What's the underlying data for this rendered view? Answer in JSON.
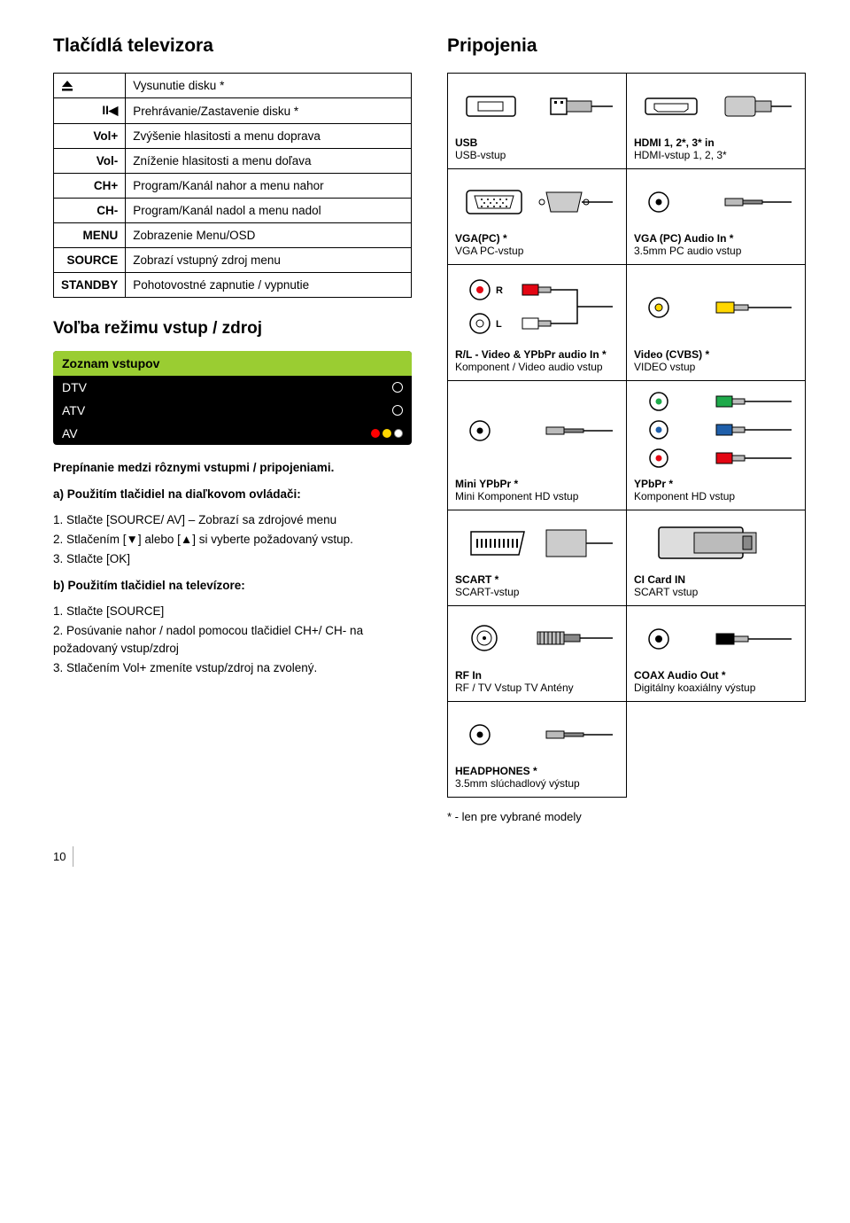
{
  "left": {
    "title1": "Tlačídlá televizora",
    "buttons": [
      {
        "key": "⏏",
        "desc": "Vysunutie disku *",
        "is_icon": true
      },
      {
        "key": "II◀",
        "desc": "Prehrávanie/Zastavenie disku *",
        "is_icon": true
      },
      {
        "key": "Vol+",
        "desc": "Zvýšenie hlasitosti a menu doprava"
      },
      {
        "key": "Vol-",
        "desc": "Zníženie hlasitosti a menu doľava"
      },
      {
        "key": "CH+",
        "desc": "Program/Kanál nahor a menu nahor"
      },
      {
        "key": "CH-",
        "desc": "Program/Kanál nadol a menu nadol"
      },
      {
        "key": "MENU",
        "desc": "Zobrazenie Menu/OSD"
      },
      {
        "key": "SOURCE",
        "desc": "Zobrazí vstupný zdroj menu"
      },
      {
        "key": "STANDBY",
        "desc": "Pohotovostné zapnutie / vypnutie"
      }
    ],
    "title2": "Voľba režimu vstup / zdroj",
    "osd": {
      "header": "Zoznam vstupov",
      "rows": [
        "DTV",
        "ATV",
        "AV"
      ],
      "av_colors": [
        "#ff0000",
        "#ffd700",
        "#ffffff"
      ]
    },
    "switching_line": "Prepínanie medzi rôznymi vstupmi / pripojeniami.",
    "section_a_title": "a) Použitím tlačidiel na diaľkovom ovládači:",
    "section_a_items": [
      "1. Stlačte [SOURCE/ AV] – Zobrazí sa zdrojové menu",
      "2. Stlačením [▼] alebo [▲] si vyberte požadovaný vstup.",
      "3. Stlačte [OK]"
    ],
    "section_b_title": "b) Použitím tlačidiel na televízore:",
    "section_b_items": [
      "1. Stlačte [SOURCE]",
      "2. Posúvanie nahor / nadol pomocou tlačidiel CH+/ CH- na požadovaný vstup/zdroj",
      "3. Stlačením Vol+ zmeníte vstup/zdroj na zvolený."
    ]
  },
  "right": {
    "title": "Pripojenia",
    "cells": [
      {
        "label": "USB",
        "sub": "USB-vstup",
        "icon": "usb"
      },
      {
        "label": "HDMI 1, 2*, 3* in",
        "sub": "HDMI-vstup 1, 2, 3*",
        "icon": "hdmi"
      },
      {
        "label": "VGA(PC) *",
        "sub": "VGA PC-vstup",
        "icon": "vga"
      },
      {
        "label": "VGA (PC) Audio In *",
        "sub": "3.5mm PC audio vstup",
        "icon": "jack35",
        "jack_color": "#000"
      },
      {
        "label": "R/L - Video & YPbPr audio In *",
        "sub": "Komponent / Video audio vstup",
        "icon": "rca_rl"
      },
      {
        "label": "Video (CVBS) *",
        "sub": "VIDEO vstup",
        "icon": "rca_single",
        "rca_color": "#ffd700"
      },
      {
        "label": "Mini YPbPr *",
        "sub": "Mini Komponent HD vstup",
        "icon": "jack35",
        "jack_color": "#000"
      },
      {
        "label": "YPbPr *",
        "sub": "Komponent HD vstup",
        "icon": "rca_ypbpr"
      },
      {
        "label": "SCART *",
        "sub": "SCART-vstup",
        "icon": "scart"
      },
      {
        "label": "CI Card IN",
        "sub": "SCART vstup",
        "icon": "cicard"
      },
      {
        "label": "RF In",
        "sub": "RF / TV Vstup TV Antény",
        "icon": "rf"
      },
      {
        "label": "COAX Audio Out *",
        "sub": "Digitálny koaxiálny výstup",
        "icon": "rca_single",
        "rca_color": "#000"
      },
      {
        "label": "HEADPHONES *",
        "sub": "3.5mm slúchadlový výstup",
        "icon": "jack35",
        "jack_color": "#000"
      }
    ],
    "footnote": "* - len pre vybrané modely"
  },
  "page_number": "10",
  "colors": {
    "osd_header_bg": "#9acd32",
    "red": "#e30613",
    "yellow": "#ffd700",
    "white": "#ffffff",
    "green": "#1faa4b",
    "blue": "#1f5faa"
  }
}
